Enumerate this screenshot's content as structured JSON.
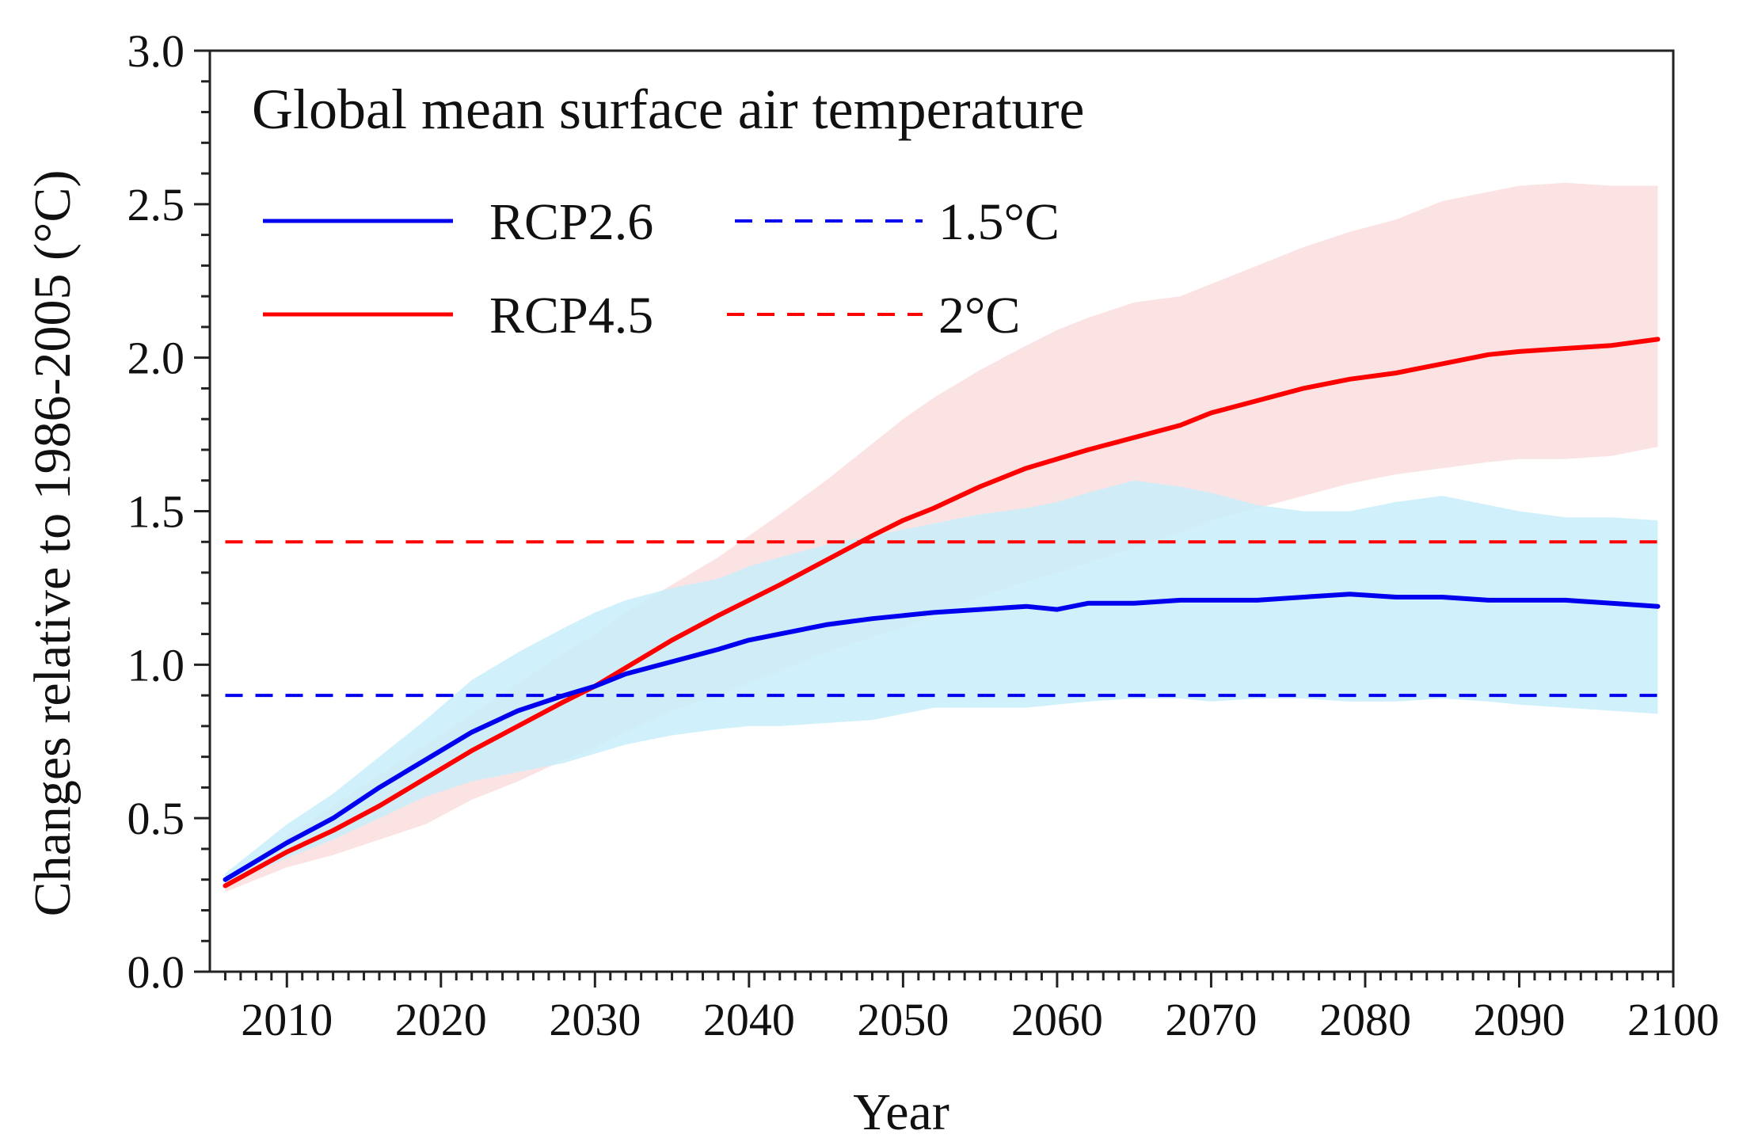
{
  "chart_data": {
    "type": "line",
    "title": "Global mean surface air temperature",
    "xlabel": "Year",
    "ylabel": "Changes relative to 1986-2005 (°C)",
    "xlim": [
      2005,
      2100
    ],
    "ylim": [
      0.0,
      3.0
    ],
    "x_ticks": [
      "2010",
      "2020",
      "2030",
      "2040",
      "2050",
      "2060",
      "2070",
      "2080",
      "2090",
      "2100"
    ],
    "y_ticks": [
      "0.0",
      "0.5",
      "1.0",
      "1.5",
      "2.0",
      "2.5",
      "3.0"
    ],
    "grid": false,
    "legend_position": "top-left",
    "series": [
      {
        "name": "RCP2.6",
        "color": "#0000ee",
        "band_color": "#c8effa",
        "x": [
          2006,
          2010,
          2013,
          2016,
          2019,
          2022,
          2025,
          2028,
          2030,
          2032,
          2035,
          2038,
          2040,
          2042,
          2045,
          2048,
          2050,
          2052,
          2055,
          2058,
          2060,
          2062,
          2065,
          2068,
          2070,
          2073,
          2076,
          2079,
          2082,
          2085,
          2088,
          2090,
          2093,
          2096,
          2099
        ],
        "y": [
          0.3,
          0.42,
          0.5,
          0.6,
          0.69,
          0.78,
          0.85,
          0.9,
          0.93,
          0.97,
          1.01,
          1.05,
          1.08,
          1.1,
          1.13,
          1.15,
          1.16,
          1.17,
          1.18,
          1.19,
          1.18,
          1.2,
          1.2,
          1.21,
          1.21,
          1.21,
          1.22,
          1.23,
          1.22,
          1.22,
          1.21,
          1.21,
          1.21,
          1.2,
          1.19
        ],
        "upper": [
          0.32,
          0.48,
          0.58,
          0.7,
          0.82,
          0.95,
          1.04,
          1.12,
          1.17,
          1.21,
          1.25,
          1.28,
          1.32,
          1.35,
          1.39,
          1.42,
          1.44,
          1.46,
          1.49,
          1.51,
          1.53,
          1.56,
          1.6,
          1.58,
          1.56,
          1.52,
          1.5,
          1.5,
          1.53,
          1.55,
          1.52,
          1.5,
          1.48,
          1.48,
          1.47
        ],
        "lower": [
          0.28,
          0.37,
          0.43,
          0.5,
          0.57,
          0.62,
          0.65,
          0.68,
          0.71,
          0.74,
          0.77,
          0.79,
          0.8,
          0.8,
          0.81,
          0.82,
          0.84,
          0.86,
          0.86,
          0.86,
          0.87,
          0.88,
          0.89,
          0.89,
          0.88,
          0.89,
          0.89,
          0.88,
          0.88,
          0.89,
          0.88,
          0.87,
          0.86,
          0.85,
          0.84
        ]
      },
      {
        "name": "RCP4.5",
        "color": "#ff0000",
        "band_color": "#fcdede",
        "x": [
          2006,
          2010,
          2013,
          2016,
          2019,
          2022,
          2025,
          2028,
          2030,
          2032,
          2035,
          2038,
          2040,
          2042,
          2045,
          2048,
          2050,
          2052,
          2055,
          2058,
          2060,
          2062,
          2065,
          2068,
          2070,
          2073,
          2076,
          2079,
          2082,
          2085,
          2088,
          2090,
          2093,
          2096,
          2099
        ],
        "y": [
          0.28,
          0.39,
          0.46,
          0.54,
          0.63,
          0.72,
          0.8,
          0.88,
          0.93,
          0.99,
          1.08,
          1.16,
          1.21,
          1.26,
          1.34,
          1.42,
          1.47,
          1.51,
          1.58,
          1.64,
          1.67,
          1.7,
          1.74,
          1.78,
          1.82,
          1.86,
          1.9,
          1.93,
          1.95,
          1.98,
          2.01,
          2.02,
          2.03,
          2.04,
          2.06
        ],
        "upper": [
          0.3,
          0.44,
          0.54,
          0.64,
          0.74,
          0.84,
          0.94,
          1.04,
          1.1,
          1.17,
          1.26,
          1.35,
          1.42,
          1.49,
          1.6,
          1.72,
          1.8,
          1.87,
          1.96,
          2.04,
          2.09,
          2.13,
          2.18,
          2.2,
          2.24,
          2.3,
          2.36,
          2.41,
          2.45,
          2.51,
          2.54,
          2.56,
          2.57,
          2.56,
          2.56
        ],
        "lower": [
          0.26,
          0.34,
          0.38,
          0.43,
          0.48,
          0.56,
          0.62,
          0.69,
          0.73,
          0.78,
          0.85,
          0.9,
          0.94,
          0.98,
          1.04,
          1.09,
          1.12,
          1.16,
          1.22,
          1.27,
          1.3,
          1.33,
          1.38,
          1.43,
          1.47,
          1.51,
          1.55,
          1.59,
          1.62,
          1.64,
          1.66,
          1.67,
          1.67,
          1.68,
          1.71
        ]
      },
      {
        "name": "1.5°C",
        "color": "#0000ee",
        "dashed": true,
        "x": [
          2006,
          2099
        ],
        "y": [
          0.9,
          0.9
        ]
      },
      {
        "name": "2°C",
        "color": "#ff0000",
        "dashed": true,
        "x": [
          2006,
          2099
        ],
        "y": [
          1.4,
          1.4
        ]
      }
    ]
  }
}
